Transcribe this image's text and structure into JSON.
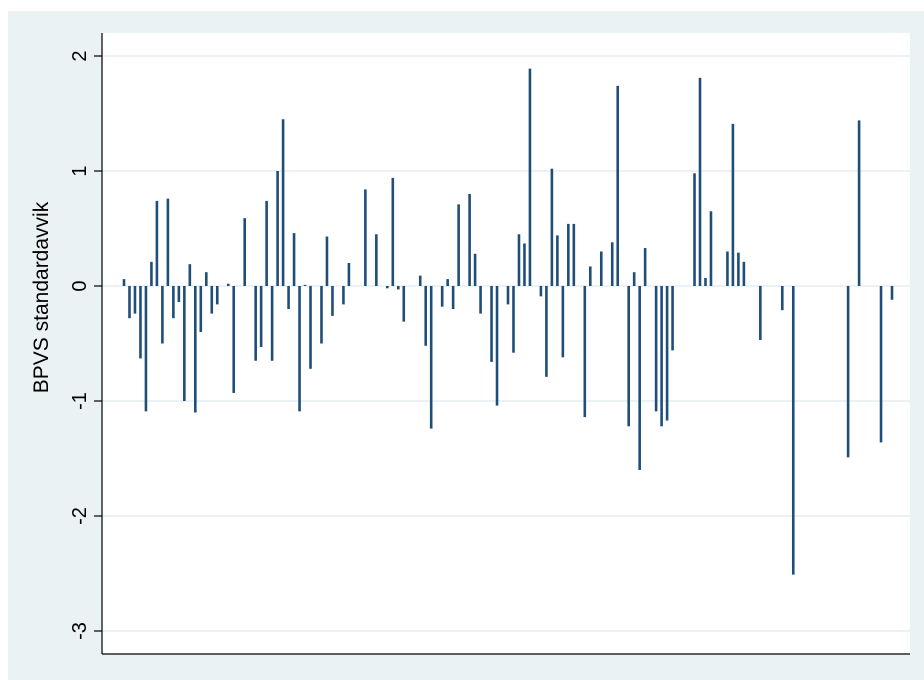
{
  "chart_data": {
    "type": "bar",
    "title": "",
    "xlabel": "",
    "ylabel": "BPVS standardavvik",
    "ylim": [
      -3.2,
      2.2
    ],
    "yticks": [
      2,
      1,
      0,
      -1,
      -2,
      -3
    ],
    "ytick_labels": [
      "2",
      "1",
      "0",
      "-1",
      "-2",
      "-3"
    ],
    "grid": true,
    "series": [
      {
        "values": [
          0.06,
          -0.28,
          -0.24,
          -0.63,
          -1.09,
          0.21,
          0.74,
          -0.5,
          0.76,
          -0.28,
          -0.14,
          -1.0,
          0.19,
          -1.1,
          -0.4,
          0.12,
          -0.24,
          -0.16,
          0.0,
          0.02,
          -0.93,
          0.0,
          0.59,
          0.0,
          -0.65,
          -0.53,
          0.74,
          -0.65,
          1.0,
          1.45,
          -0.2,
          0.46,
          -1.09,
          0.01,
          -0.72,
          0.0,
          -0.5,
          0.43,
          -0.26,
          0.0,
          -0.16,
          0.2,
          0.0,
          0.0,
          0.84,
          0.0,
          0.45,
          0.0,
          -0.02,
          0.94,
          -0.03,
          -0.31,
          0.0,
          0.0,
          0.09,
          -0.52,
          -1.24,
          0.0,
          -0.18,
          0.06,
          -0.2,
          0.71,
          0.0,
          0.8,
          0.28,
          -0.24,
          0.0,
          -0.66,
          -1.04,
          0.0,
          -0.16,
          -0.58,
          0.45,
          0.37,
          1.89,
          0.0,
          -0.09,
          -0.79,
          1.02,
          0.44,
          -0.62,
          0.54,
          0.54,
          0.0,
          -1.14,
          0.17,
          0.0,
          0.3,
          0.0,
          0.38,
          1.74,
          0.0,
          -1.22,
          0.12,
          -1.6,
          0.33,
          0.0,
          -1.09,
          -1.22,
          -1.17,
          -0.56,
          0.0,
          0.0,
          0.0,
          0.98,
          1.81,
          0.07,
          0.65,
          0.0,
          0.0,
          0.3,
          1.41,
          0.29,
          0.21,
          0.0,
          0.0,
          -0.47,
          0.0,
          0.0,
          0.0,
          -0.21,
          0.0,
          -2.51,
          0.0,
          0.0,
          0.0,
          0.0,
          0.0,
          0.0,
          0.0,
          0.0,
          0.0,
          -1.49,
          0.0,
          1.44,
          0.0,
          0.0,
          0.0,
          -1.36,
          0.0,
          -0.12
        ]
      }
    ],
    "colors": {
      "bar": "#1f4e79",
      "figure_background": "#eaf2f3",
      "plot_background": "#ffffff",
      "grid": "#e6eef0",
      "axis": "#000000"
    }
  }
}
